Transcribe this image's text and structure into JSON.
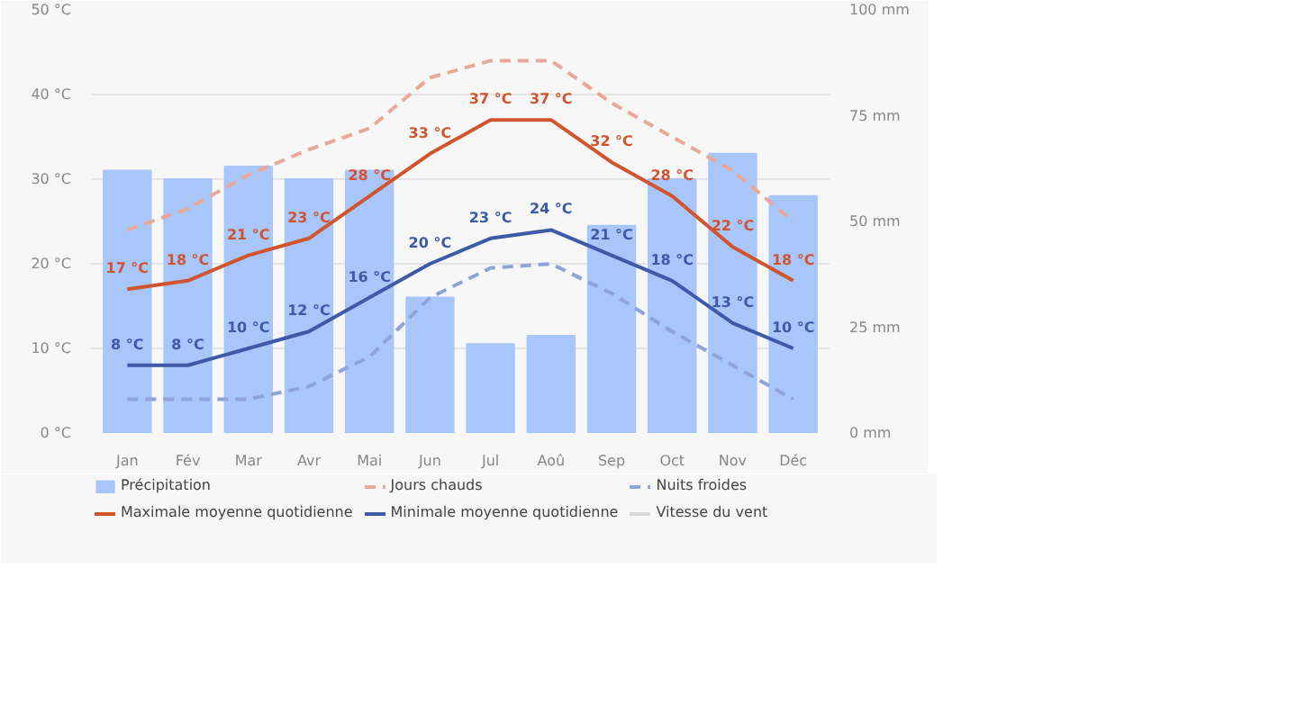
{
  "chart_data": {
    "type": "line",
    "categories": [
      "Jan",
      "Fév",
      "Mar",
      "Avr",
      "Mai",
      "Jun",
      "Jul",
      "Aoû",
      "Sep",
      "Oct",
      "Nov",
      "Déc"
    ],
    "series": [
      {
        "name": "Précipitation",
        "type": "bar",
        "axis": "y2",
        "color": "#a9c6fb",
        "values": [
          62,
          60,
          63,
          60,
          62,
          32,
          21,
          23,
          49,
          60,
          66,
          56
        ]
      },
      {
        "name": "Maximale moyenne quotidienne",
        "line_style": "solid",
        "color": "#d0552f",
        "values": [
          17,
          18,
          21,
          23,
          28,
          33,
          37,
          37,
          32,
          28,
          22,
          18
        ],
        "value_labels": [
          "17 °C",
          "18 °C",
          "21 °C",
          "23 °C",
          "28 °C",
          "33 °C",
          "37 °C",
          "37 °C",
          "32 °C",
          "28 °C",
          "22 °C",
          "18 °C"
        ]
      },
      {
        "name": "Jours chauds",
        "line_style": "dashed",
        "color": "#e9a99a",
        "values": [
          24,
          26.5,
          30.5,
          33.5,
          36,
          42,
          44,
          44,
          39,
          35,
          31,
          25
        ]
      },
      {
        "name": "Minimale moyenne quotidienne",
        "line_style": "solid",
        "color": "#3d5aa8",
        "values": [
          8,
          8,
          10,
          12,
          16,
          20,
          23,
          24,
          21,
          18,
          13,
          10
        ],
        "value_labels": [
          "8 °C",
          "8 °C",
          "10 °C",
          "12 °C",
          "16 °C",
          "20 °C",
          "23 °C",
          "24 °C",
          "21 °C",
          "18 °C",
          "13 °C",
          "10 °C"
        ]
      },
      {
        "name": "Nuits froides",
        "line_style": "dashed",
        "color": "#8fa3d8",
        "values": [
          4,
          4,
          4,
          5.5,
          9,
          16,
          19.5,
          20,
          16.5,
          12,
          8,
          4
        ]
      },
      {
        "name": "Vitesse du vent",
        "line_style": "solid",
        "color": "#d8d8d8",
        "values": [
          null,
          null,
          null,
          null,
          null,
          null,
          null,
          null,
          null,
          null,
          null,
          null
        ]
      }
    ],
    "ylim": [
      0,
      50
    ],
    "yticks": [
      {
        "value": 0,
        "label": "0 °C"
      },
      {
        "value": 10,
        "label": "10 °C"
      },
      {
        "value": 20,
        "label": "20 °C"
      },
      {
        "value": 30,
        "label": "30 °C"
      },
      {
        "value": 40,
        "label": "40 °C"
      },
      {
        "value": 50,
        "label": "50 °C"
      }
    ],
    "y2lim": [
      0,
      100
    ],
    "y2ticks": [
      {
        "value": 0,
        "label": "0 mm"
      },
      {
        "value": 25,
        "label": "25 mm"
      },
      {
        "value": 50,
        "label": "50 mm"
      },
      {
        "value": 75,
        "label": "75 mm"
      },
      {
        "value": 100,
        "label": "100 mm"
      }
    ],
    "grid": "y",
    "legend": "bottom"
  }
}
